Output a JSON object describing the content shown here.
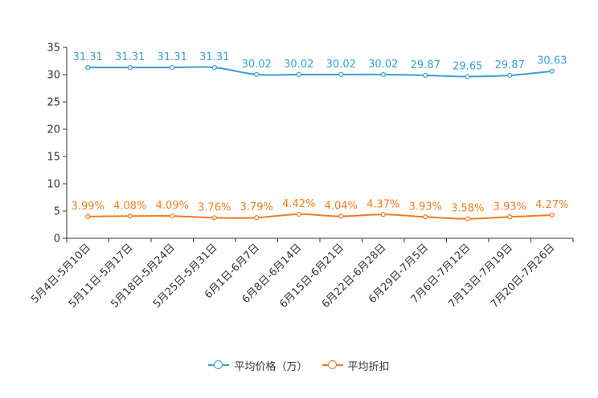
{
  "chart_data": {
    "type": "line",
    "categories": [
      "5月4日-5月10日",
      "5月11日-5月17日",
      "5月18日-5月24日",
      "5月25日-5月31日",
      "6月1日-6月7日",
      "6月8日-6月14日",
      "6月15日-6月21日",
      "6月22日-6月28日",
      "6月29日-7月5日",
      "7月6日-7月12日",
      "7月13日-7月19日",
      "7月20日-7月26日"
    ],
    "ylim": [
      0,
      35
    ],
    "yticks": [
      0,
      5,
      10,
      15,
      20,
      25,
      30,
      35
    ],
    "series": [
      {
        "name": "平均价格（万）",
        "color": "#3a9fd3",
        "values": [
          31.31,
          31.31,
          31.31,
          31.31,
          30.02,
          30.02,
          30.02,
          30.02,
          29.87,
          29.65,
          29.87,
          30.63
        ],
        "labels": [
          "31.31",
          "31.31",
          "31.31",
          "31.31",
          "30.02",
          "30.02",
          "30.02",
          "30.02",
          "29.87",
          "29.65",
          "29.87",
          "30.63"
        ]
      },
      {
        "name": "平均折扣",
        "color": "#f07c1e",
        "values": [
          3.99,
          4.08,
          4.09,
          3.76,
          3.79,
          4.42,
          4.04,
          4.37,
          3.93,
          3.58,
          3.93,
          4.27
        ],
        "labels": [
          "3.99%",
          "4.08%",
          "4.09%",
          "3.76%",
          "3.79%",
          "4.42%",
          "4.04%",
          "4.37%",
          "3.93%",
          "3.58%",
          "3.93%",
          "4.27%"
        ]
      }
    ],
    "legend_position": "bottom"
  }
}
